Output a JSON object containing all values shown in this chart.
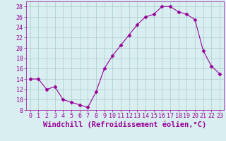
{
  "x": [
    0,
    1,
    2,
    3,
    4,
    5,
    6,
    7,
    8,
    9,
    10,
    11,
    12,
    13,
    14,
    15,
    16,
    17,
    18,
    19,
    20,
    21,
    22,
    23
  ],
  "y": [
    14,
    14,
    12,
    12.5,
    10,
    9.5,
    9,
    8.5,
    11.5,
    16,
    18.5,
    20.5,
    22.5,
    24.5,
    26,
    26.5,
    28,
    28,
    27,
    26.5,
    25.5,
    19.5,
    16.5,
    15
  ],
  "line_color": "#990099",
  "marker": "D",
  "marker_size": 2.5,
  "bg_color": "#d8eef0",
  "grid_color": "#aacccc",
  "xlabel": "Windchill (Refroidissement éolien,°C)",
  "xlabel_color": "#990099",
  "xlim": [
    -0.5,
    23.5
  ],
  "ylim": [
    8,
    29
  ],
  "yticks": [
    8,
    10,
    12,
    14,
    16,
    18,
    20,
    22,
    24,
    26,
    28
  ],
  "xtick_labels": [
    "0",
    "1",
    "2",
    "3",
    "4",
    "5",
    "6",
    "7",
    "8",
    "9",
    "10",
    "11",
    "12",
    "13",
    "14",
    "15",
    "16",
    "17",
    "18",
    "19",
    "20",
    "21",
    "22",
    "23"
  ],
  "tick_color": "#990099",
  "tick_fontsize": 6,
  "xlabel_fontsize": 7.5
}
